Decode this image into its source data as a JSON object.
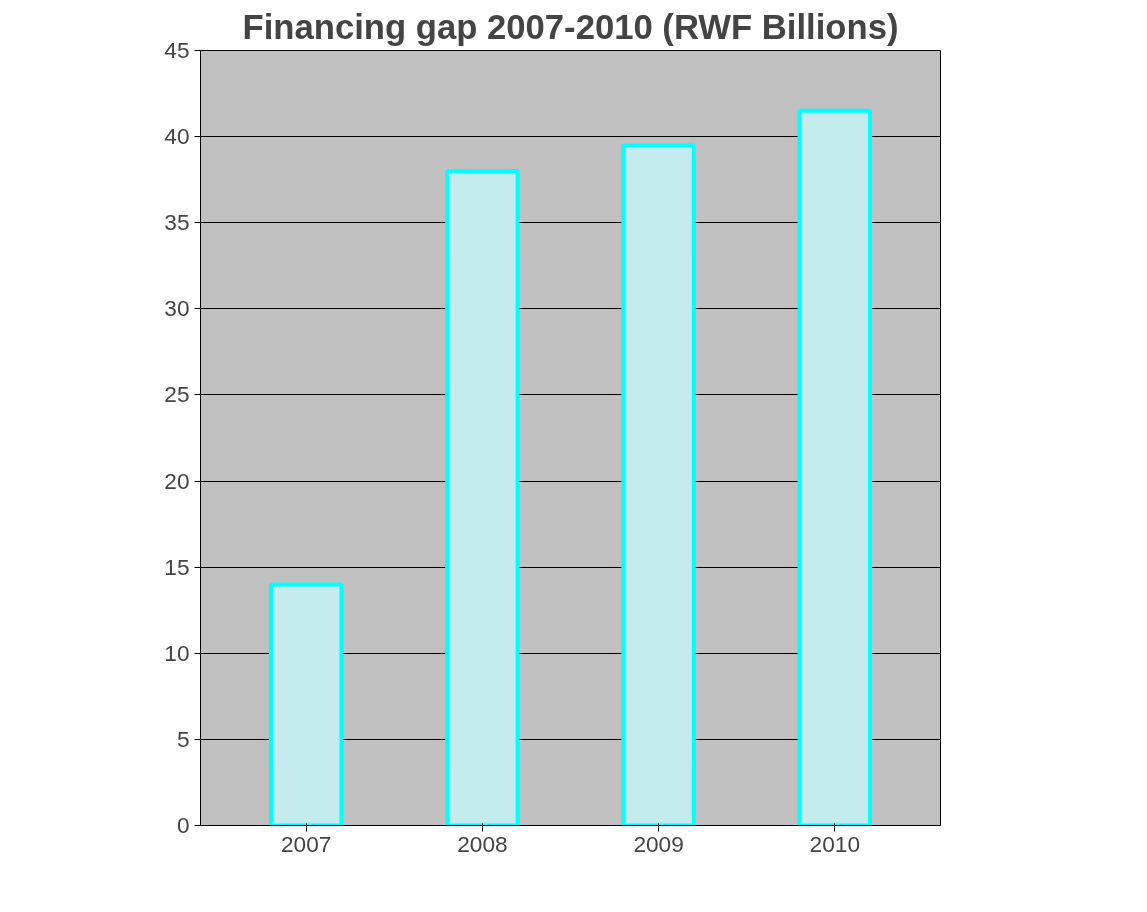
{
  "chart_data": {
    "type": "bar",
    "title": "Financing gap 2007-2010 (RWF Billions)",
    "categories": [
      "2007",
      "2008",
      "2009",
      "2010"
    ],
    "values": [
      14,
      38,
      39.5,
      41.5
    ],
    "color": "#c4ecee",
    "ylim": [
      0,
      45
    ],
    "yticks": [
      0,
      5,
      10,
      15,
      20,
      25,
      30,
      35,
      40,
      45
    ],
    "grid": "y"
  }
}
